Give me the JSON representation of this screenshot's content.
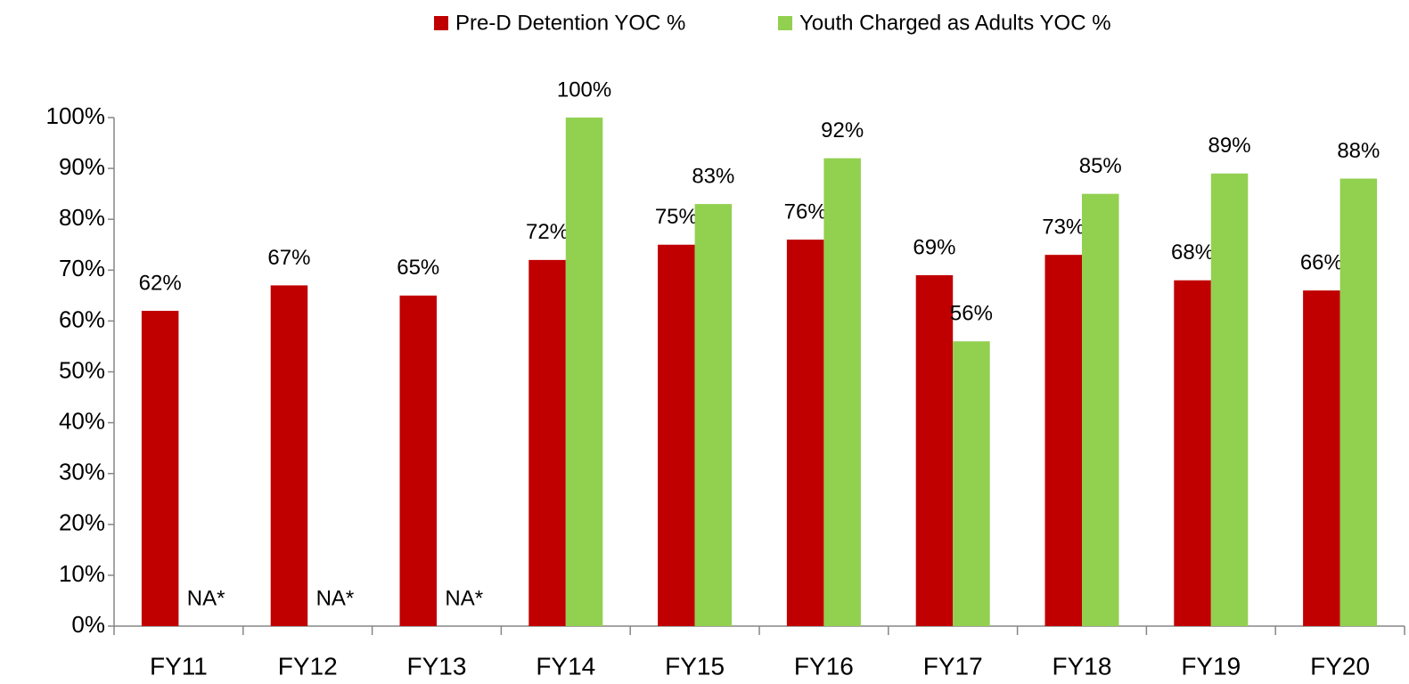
{
  "chart_data": {
    "type": "bar",
    "categories": [
      "FY11",
      "FY12",
      "FY13",
      "FY14",
      "FY15",
      "FY16",
      "FY17",
      "FY18",
      "FY19",
      "FY20"
    ],
    "series": [
      {
        "name": "Pre-D Detention YOC %",
        "color": "#c00000",
        "values": [
          62,
          67,
          65,
          72,
          75,
          76,
          69,
          73,
          68,
          66
        ],
        "value_labels": [
          "62%",
          "67%",
          "65%",
          "72%",
          "75%",
          "76%",
          "69%",
          "73%",
          "68%",
          "66%"
        ]
      },
      {
        "name": "Youth Charged as Adults YOC %",
        "color": "#92d050",
        "values": [
          null,
          null,
          null,
          100,
          83,
          92,
          56,
          85,
          89,
          88
        ],
        "value_labels": [
          "NA*",
          "NA*",
          "NA*",
          "100%",
          "83%",
          "92%",
          "56%",
          "85%",
          "89%",
          "88%"
        ]
      }
    ],
    "ylim": [
      0,
      100
    ],
    "yticks": [
      {
        "value": 0,
        "label": "0%"
      },
      {
        "value": 10,
        "label": "10%"
      },
      {
        "value": 20,
        "label": "20%"
      },
      {
        "value": 30,
        "label": "30%"
      },
      {
        "value": 40,
        "label": "40%"
      },
      {
        "value": 50,
        "label": "50%"
      },
      {
        "value": 60,
        "label": "60%"
      },
      {
        "value": 70,
        "label": "70%"
      },
      {
        "value": 80,
        "label": "80%"
      },
      {
        "value": 90,
        "label": "90%"
      },
      {
        "value": 100,
        "label": "100%"
      }
    ],
    "grid": false,
    "legend": "top"
  }
}
